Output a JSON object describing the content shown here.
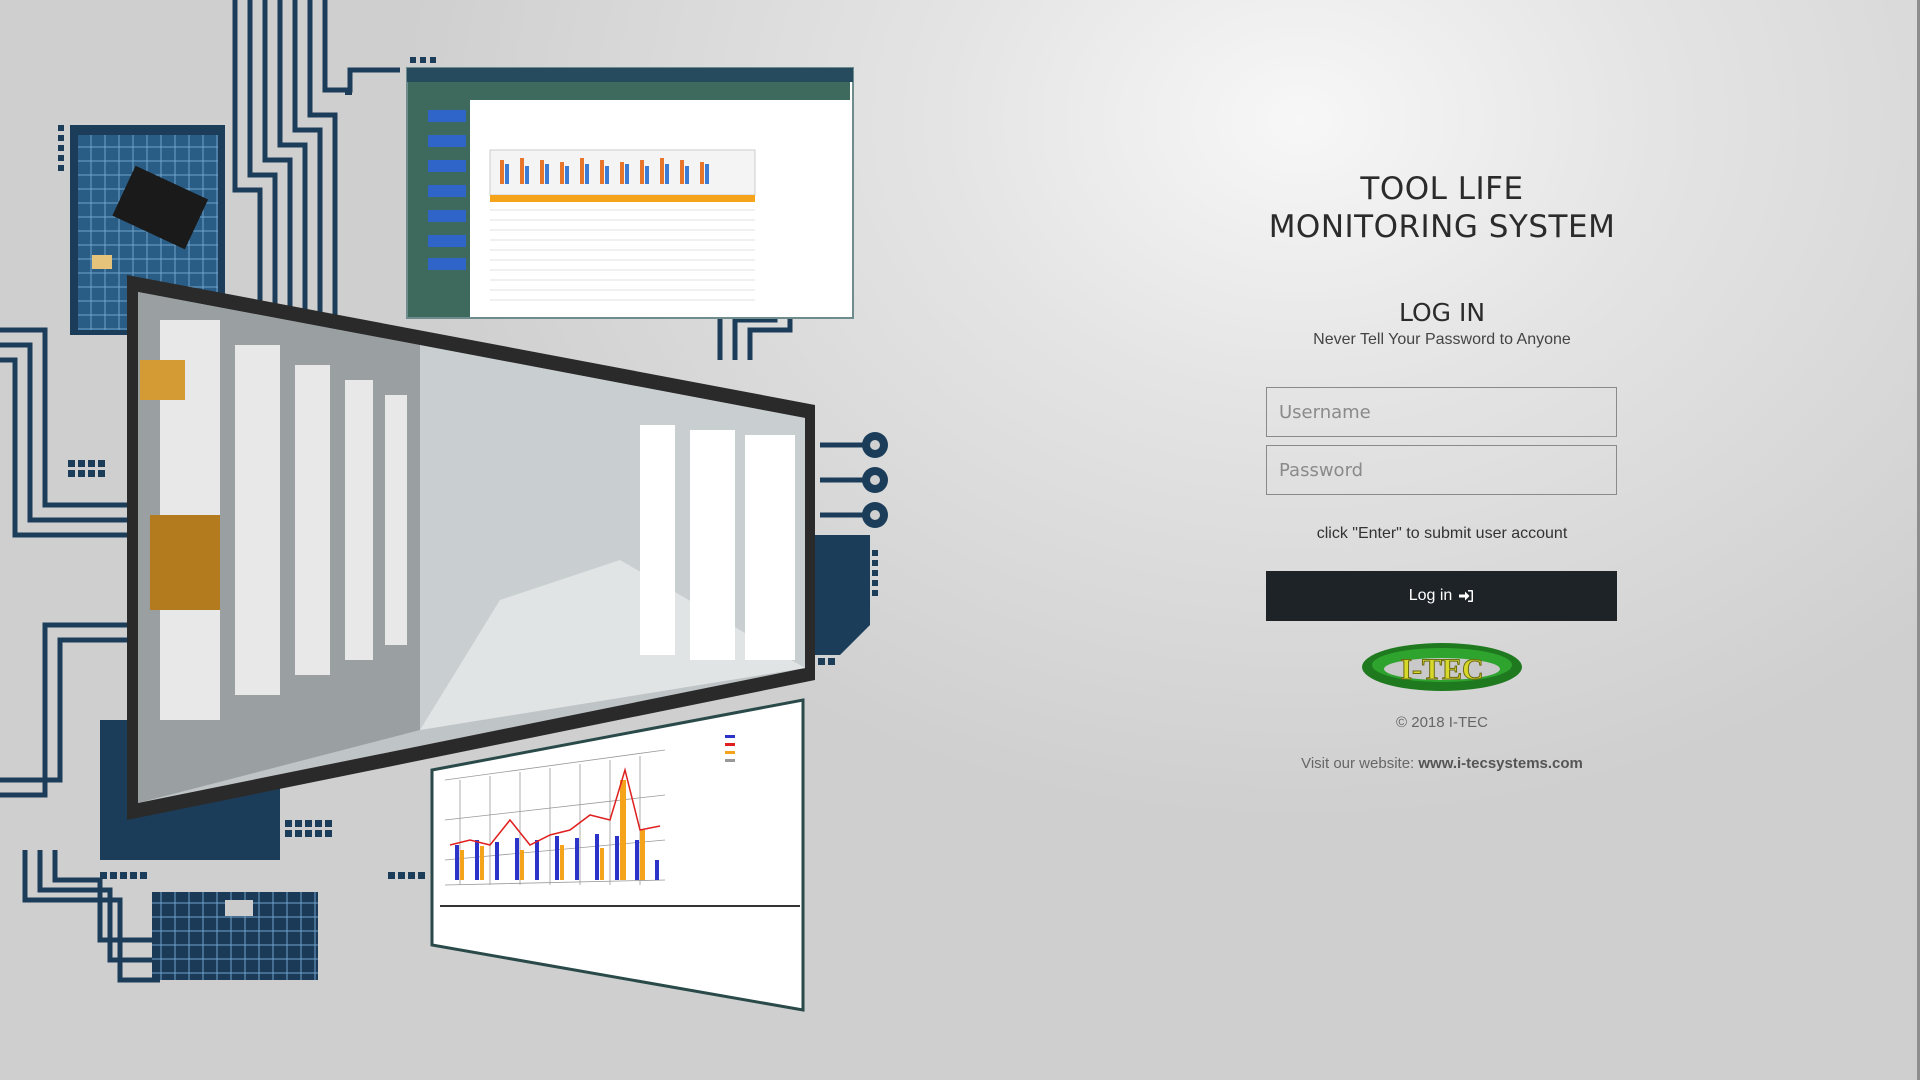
{
  "app": {
    "title_line1": "TOOL LIFE",
    "title_line2": "MONITORING SYSTEM"
  },
  "login": {
    "heading": "LOG IN",
    "subheading": "Never Tell Your Password to Anyone",
    "username_placeholder": "Username",
    "password_placeholder": "Password",
    "hint": "click \"Enter\" to submit user account",
    "button_label": "Log in",
    "button_icon": "sign-in-icon"
  },
  "footer": {
    "logo_text": "I-TEC",
    "copyright": "© 2018 I-TEC",
    "visit_prefix": "Visit our website:",
    "website": "www.i-tecsystems.com"
  },
  "colors": {
    "button_bg": "#1e2328",
    "circuit": "#1c3d5a",
    "accent_orange": "#f5a31a"
  }
}
